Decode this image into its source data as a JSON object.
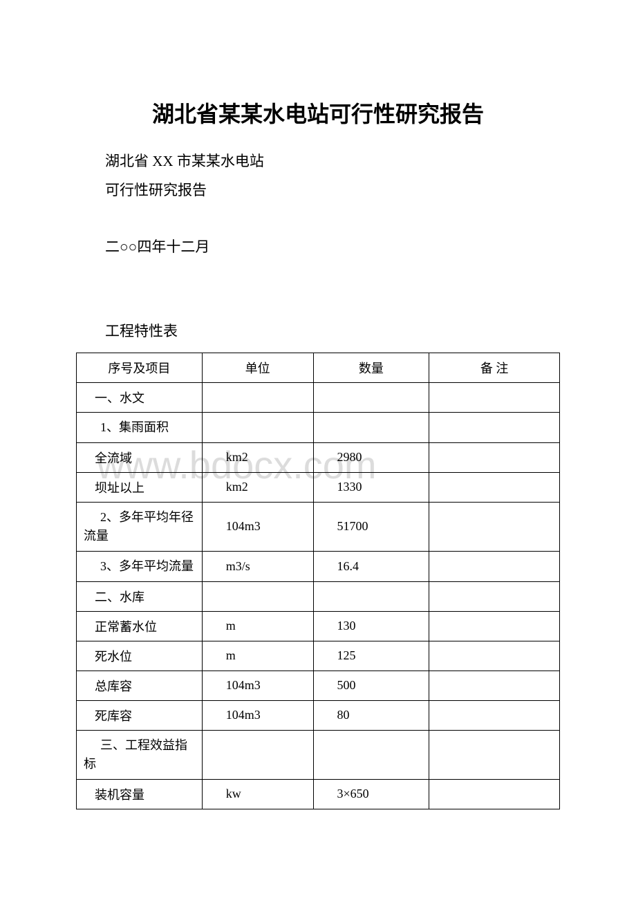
{
  "watermark": "www.bdocx.com",
  "title": "湖北省某某水电站可行性研究报告",
  "paragraphs": {
    "p1": "湖北省 XX 市某某水电站",
    "p2": "可行性研究报告",
    "p3": "二○○四年十二月",
    "section": "工程特性表"
  },
  "table": {
    "headers": {
      "c1": "序号及项目",
      "c2": "单位",
      "c3": "数量",
      "c4": "备 注"
    },
    "rows": [
      {
        "c1": "一、水文",
        "c2": "",
        "c3": "",
        "c4": "",
        "wrap": false
      },
      {
        "c1": "1、集雨面积",
        "c2": "",
        "c3": "",
        "c4": "",
        "wrap": true
      },
      {
        "c1": "全流域",
        "c2": "km2",
        "c3": "2980",
        "c4": "",
        "wrap": false
      },
      {
        "c1": "坝址以上",
        "c2": "km2",
        "c3": "1330",
        "c4": "",
        "wrap": false
      },
      {
        "c1": "2、多年平均年径流量",
        "c2": "104m3",
        "c3": "51700",
        "c4": "",
        "wrap": true
      },
      {
        "c1": "3、多年平均流量",
        "c2": "m3/s",
        "c3": "16.4",
        "c4": "",
        "wrap": true
      },
      {
        "c1": "二、水库",
        "c2": "",
        "c3": "",
        "c4": "",
        "wrap": false
      },
      {
        "c1": "正常蓄水位",
        "c2": "m",
        "c3": "130",
        "c4": "",
        "wrap": false
      },
      {
        "c1": "死水位",
        "c2": "m",
        "c3": "125",
        "c4": "",
        "wrap": false
      },
      {
        "c1": "总库容",
        "c2": "104m3",
        "c3": "500",
        "c4": "",
        "wrap": false
      },
      {
        "c1": "死库容",
        "c2": "104m3",
        "c3": "80",
        "c4": "",
        "wrap": false
      },
      {
        "c1": "三、工程效益指标",
        "c2": "",
        "c3": "",
        "c4": "",
        "wrap": true
      },
      {
        "c1": "装机容量",
        "c2": "kw",
        "c3": "3×650",
        "c4": "",
        "wrap": false
      }
    ]
  },
  "colors": {
    "text": "#000000",
    "border": "#000000",
    "background": "#ffffff",
    "watermark": "#dcdcdc"
  }
}
